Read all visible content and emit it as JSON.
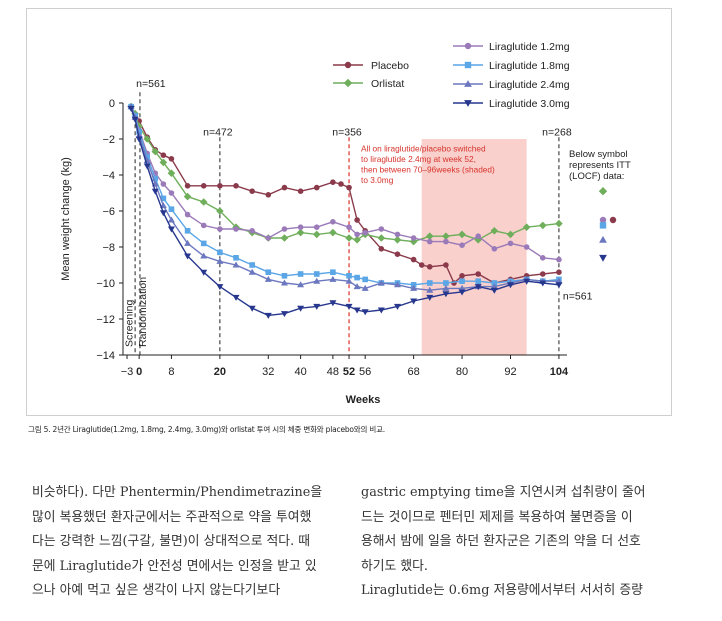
{
  "chart_data": {
    "type": "line",
    "xlabel": "Weeks",
    "ylabel": "Mean weight change (kg)",
    "ylim": [
      -14,
      0
    ],
    "xlim": [
      -4,
      106
    ],
    "xticks": [
      "-3",
      "0",
      "8",
      "20",
      "32",
      "40",
      "48",
      "52",
      "56",
      "68",
      "80",
      "92",
      "104"
    ],
    "xtick_values": [
      -3,
      0,
      8,
      20,
      32,
      40,
      48,
      52,
      56,
      68,
      80,
      92,
      104
    ],
    "yticks": [
      "0",
      "-2",
      "-4",
      "-6",
      "-8",
      "-10",
      "-12",
      "-14"
    ],
    "ytick_values": [
      0,
      -2,
      -4,
      -6,
      -8,
      -10,
      -12,
      -14
    ],
    "legend_position": "top-right",
    "phase_labels": [
      "Screening",
      "Randomization"
    ],
    "n_labels": [
      {
        "text": "n=561",
        "x": 0,
        "y": 0.9
      },
      {
        "text": "n=472",
        "x": 20,
        "y": -1.8
      },
      {
        "text": "n=356",
        "x": 52,
        "y": -1.8
      },
      {
        "text": "n=268",
        "x": 104,
        "y": -1.8
      },
      {
        "text": "n=561",
        "x": 104,
        "y": -10.7
      }
    ],
    "shaded_region": {
      "x": [
        70,
        96
      ],
      "color": "#f9d0cc"
    },
    "switch_annotation": {
      "lines": [
        "All on liraglutide/placebo switched",
        "to liraglutide 2.4mg at week 52,",
        "then between 70–96weeks (shaded)",
        "to 3.0mg"
      ],
      "color": "#d8322b"
    },
    "locf_note": [
      "Below symbol",
      "represents ITT",
      "(LOCF) data:"
    ],
    "series": [
      {
        "name": "Placebo",
        "color": "#8a3a4a",
        "marker": "circle",
        "x": [
          -2,
          -1,
          0,
          2,
          4,
          6,
          8,
          12,
          16,
          20,
          24,
          28,
          32,
          36,
          40,
          44,
          48,
          50,
          52,
          54,
          56,
          60,
          64,
          68,
          70,
          72,
          76,
          78,
          80,
          84,
          88,
          92,
          96,
          100,
          104
        ],
        "y": [
          -0.2,
          -0.6,
          -1.0,
          -1.9,
          -2.6,
          -2.9,
          -3.1,
          -4.6,
          -4.6,
          -4.6,
          -4.6,
          -4.9,
          -5.1,
          -4.7,
          -4.9,
          -4.7,
          -4.4,
          -4.5,
          -4.7,
          -6.5,
          -7.1,
          -8.1,
          -8.4,
          -8.7,
          -9.0,
          -9.1,
          -9.0,
          -10.0,
          -9.6,
          -9.5,
          -10.0,
          -9.8,
          -9.6,
          -9.5,
          -9.4
        ],
        "itt": -6.5
      },
      {
        "name": "Orlistat",
        "color": "#6fae5b",
        "marker": "diamond",
        "x": [
          -2,
          -1,
          0,
          2,
          4,
          6,
          8,
          12,
          16,
          20,
          24,
          28,
          32,
          36,
          40,
          44,
          48,
          52,
          54,
          56,
          60,
          64,
          68,
          72,
          76,
          80,
          84,
          88,
          92,
          96,
          100,
          104
        ],
        "y": [
          -0.2,
          -0.6,
          -1.3,
          -2.0,
          -2.7,
          -3.3,
          -3.9,
          -5.2,
          -5.5,
          -6.0,
          -6.9,
          -7.2,
          -7.5,
          -7.5,
          -7.2,
          -7.3,
          -7.2,
          -7.5,
          -7.6,
          -7.3,
          -7.5,
          -7.6,
          -7.7,
          -7.4,
          -7.4,
          -7.3,
          -7.6,
          -7.1,
          -7.3,
          -6.9,
          -6.8,
          -6.7
        ],
        "itt": -4.9
      },
      {
        "name": "Liraglutide 1.2mg",
        "color": "#9a7ab8",
        "marker": "circle",
        "x": [
          -2,
          -1,
          0,
          2,
          4,
          6,
          8,
          12,
          16,
          20,
          24,
          28,
          32,
          36,
          40,
          44,
          48,
          52,
          54,
          56,
          60,
          64,
          68,
          72,
          76,
          80,
          84,
          88,
          92,
          96,
          100,
          104
        ],
        "y": [
          -0.2,
          -0.7,
          -1.5,
          -2.8,
          -3.9,
          -4.5,
          -5.0,
          -6.2,
          -6.8,
          -7.0,
          -7.0,
          -7.1,
          -7.5,
          -7.0,
          -6.9,
          -6.9,
          -6.6,
          -6.9,
          -7.3,
          -7.2,
          -7.0,
          -7.3,
          -7.5,
          -7.7,
          -7.7,
          -7.9,
          -7.4,
          -8.1,
          -7.8,
          -8.0,
          -8.6,
          -8.7
        ],
        "itt": -6.5
      },
      {
        "name": "Liraglutide 1.8mg",
        "color": "#5aa6e6",
        "marker": "square",
        "x": [
          -2,
          -1,
          0,
          2,
          4,
          6,
          8,
          12,
          16,
          20,
          24,
          28,
          32,
          36,
          40,
          44,
          48,
          52,
          54,
          56,
          60,
          64,
          68,
          72,
          76,
          80,
          84,
          88,
          92,
          96,
          100,
          104
        ],
        "y": [
          -0.2,
          -0.7,
          -1.6,
          -3.0,
          -4.2,
          -5.3,
          -5.9,
          -7.1,
          -7.8,
          -8.3,
          -8.6,
          -9.0,
          -9.4,
          -9.6,
          -9.5,
          -9.5,
          -9.4,
          -9.6,
          -9.7,
          -9.8,
          -10.0,
          -10.0,
          -10.1,
          -10.0,
          -10.0,
          -9.9,
          -9.9,
          -10.0,
          -9.9,
          -9.8,
          -9.9,
          -9.8
        ],
        "itt": -6.8
      },
      {
        "name": "Liraglutide 2.4mg",
        "color": "#6b77be",
        "marker": "triangle",
        "x": [
          -2,
          -1,
          0,
          2,
          4,
          6,
          8,
          12,
          16,
          20,
          24,
          28,
          32,
          36,
          40,
          44,
          48,
          52,
          54,
          56,
          60,
          64,
          68,
          72,
          76,
          80,
          84,
          88,
          92,
          96,
          100,
          104
        ],
        "y": [
          -0.2,
          -0.8,
          -1.8,
          -3.2,
          -4.5,
          -5.7,
          -6.5,
          -7.8,
          -8.5,
          -8.8,
          -9.0,
          -9.4,
          -9.8,
          -10.0,
          -10.1,
          -9.9,
          -9.8,
          -9.9,
          -10.2,
          -10.3,
          -10.0,
          -10.1,
          -10.3,
          -10.4,
          -10.3,
          -10.3,
          -10.2,
          -10.2,
          -10.0,
          -9.8,
          -9.9,
          -9.9
        ],
        "itt": -7.6
      },
      {
        "name": "Liraglutide 3.0mg",
        "color": "#27378e",
        "marker": "triangle-down",
        "x": [
          -2,
          -1,
          0,
          2,
          4,
          6,
          8,
          12,
          16,
          20,
          24,
          28,
          32,
          36,
          40,
          44,
          48,
          52,
          54,
          56,
          60,
          64,
          68,
          72,
          76,
          80,
          84,
          88,
          92,
          96,
          100,
          104
        ],
        "y": [
          -0.3,
          -0.9,
          -2.0,
          -3.5,
          -4.9,
          -6.1,
          -7.0,
          -8.5,
          -9.4,
          -10.2,
          -10.8,
          -11.4,
          -11.8,
          -11.7,
          -11.4,
          -11.3,
          -11.1,
          -11.3,
          -11.5,
          -11.6,
          -11.5,
          -11.3,
          -11.0,
          -10.8,
          -10.6,
          -10.5,
          -10.2,
          -10.4,
          -10.1,
          -9.9,
          -10.0,
          -10.1
        ],
        "itt": -8.6
      }
    ]
  },
  "caption": "그림 5. 2년간 Liraglutide(1.2mg, 1.8mg, 2.4mg, 3.0mg)와 orlistat 투여 시의 체중 변화와 placebo와의 비교.",
  "body_text": {
    "left_lines": [
      "비슷하다). 다만 Phentermin/Phendimetrazine을",
      "많이 복용했던 환자군에서는 주관적으로 약을 투여했",
      "다는 강력한 느낌(구갈, 불면)이 상대적으로 적다. 때",
      "문에 Liraglutide가 안전성 면에서는 인정을 받고 있",
      "으나 아예 먹고 싶은 생각이 나지 않는다기보다"
    ],
    "right_lines": [
      "gastric emptying time을 지연시켜 섭취량이 줄어",
      "드는 것이므로 펜터민 제제를 복용하여 불면증을 이",
      "용해서 밤에 일을 하던 환자군은 기존의 약을 더 선호",
      "하기도 했다.",
      "Liraglutide는 0.6mg 저용량에서부터 서서히 증량"
    ]
  }
}
